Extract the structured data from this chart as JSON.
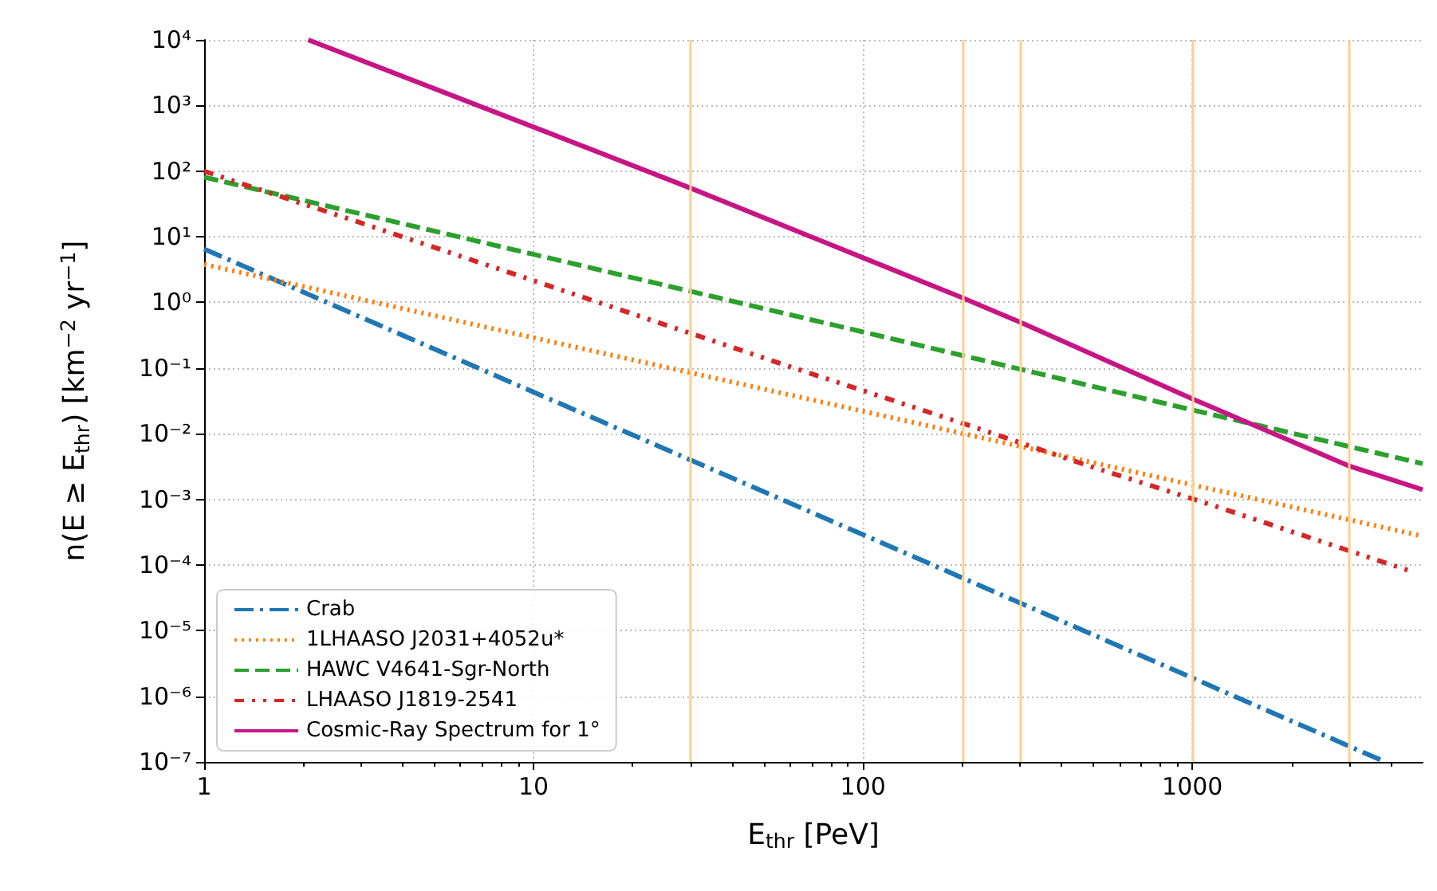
{
  "chart_data": {
    "type": "line",
    "xlabel": "E$_{thr}$ [PeV]",
    "ylabel": "n(E ≥ E$_{thr}$) [km$^{−2}$ yr$^{−1}$]",
    "log": "xy",
    "grid": true,
    "legend": "bottom left",
    "xlim": [
      1,
      5000
    ],
    "xticks": [
      1,
      10,
      100,
      1000
    ],
    "ylim": [
      1e-07,
      10000
    ],
    "yticks": [
      {
        "value": 1e-07,
        "label": "10⁻⁷"
      },
      {
        "value": 1e-06,
        "label": "10⁻⁶"
      },
      {
        "value": 1e-05,
        "label": "10⁻⁵"
      },
      {
        "value": 0.0001,
        "label": "10⁻⁴"
      },
      {
        "value": 0.001,
        "label": "10⁻³"
      },
      {
        "value": 0.01,
        "label": "10⁻²"
      },
      {
        "value": 0.1,
        "label": "10⁻¹"
      },
      {
        "value": 1,
        "label": "10⁰"
      },
      {
        "value": 10,
        "label": "10¹"
      },
      {
        "value": 100,
        "label": "10²"
      },
      {
        "value": 1000,
        "label": "10³"
      },
      {
        "value": 10000,
        "label": "10⁴"
      }
    ],
    "series": [
      {
        "name": "Crab",
        "color": "#1f77b4",
        "line_style": "dashdot",
        "x": [
          1,
          10,
          100,
          1000,
          3850
        ],
        "values": [
          6.5,
          0.043,
          0.00029,
          1.9e-06,
          1e-07
        ]
      },
      {
        "name": "1LHAASO J2031+4052u*",
        "color": "#ff7f0e",
        "line_style": "dotted",
        "x": [
          1,
          10,
          100,
          1000,
          5000
        ],
        "values": [
          3.8,
          0.29,
          0.022,
          0.00166,
          0.000275
        ]
      },
      {
        "name": "HAWC V4641-Sgr-North",
        "color": "#2ca02c",
        "line_style": "dashed",
        "x": [
          1,
          10,
          100,
          1000,
          5000
        ],
        "values": [
          81,
          5.4,
          0.355,
          0.023,
          0.0035
        ]
      },
      {
        "name": "LHAASO J1819-2541",
        "color": "#d62728",
        "line_style": "dashdotdot",
        "x": [
          1,
          1.43,
          2.57,
          8.2,
          60,
          200,
          462,
          1120,
          4680
        ],
        "values": [
          100,
          55,
          21,
          3.0,
          0.105,
          0.0145,
          0.0035,
          0.00085,
          7.8e-05
        ]
      },
      {
        "name": "Cosmic-Ray Spectrum for 1°",
        "color": "#c71585",
        "line_style": "solid",
        "x": [
          2.07,
          10,
          30,
          100,
          200,
          300,
          1000,
          3000,
          5000
        ],
        "values": [
          10000,
          470,
          55,
          4.8,
          1.18,
          0.5,
          0.034,
          0.0032,
          0.0014
        ]
      }
    ],
    "ref_lines": [
      {
        "axis": "x",
        "value": 30,
        "color": "#fdd08c"
      },
      {
        "axis": "x",
        "value": 200,
        "color": "#fdd08c"
      },
      {
        "axis": "x",
        "value": 300,
        "color": "#fdd08c"
      },
      {
        "axis": "x",
        "value": 1000,
        "color": "#fdd08c"
      },
      {
        "axis": "x",
        "value": 3000,
        "color": "#fdd08c"
      }
    ]
  }
}
